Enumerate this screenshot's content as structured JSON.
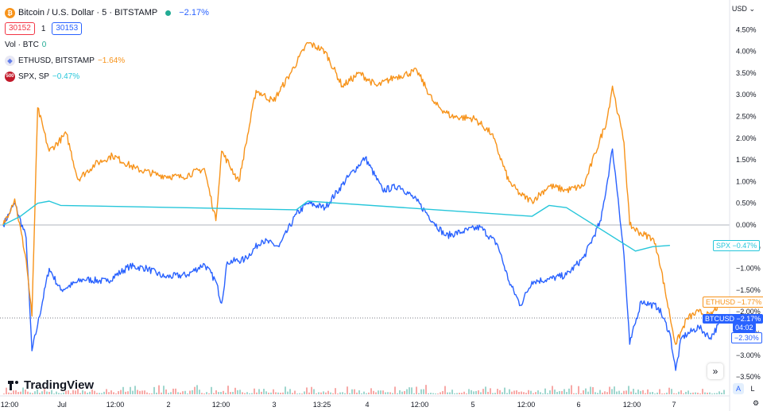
{
  "header": {
    "symbol_title": "Bitcoin / U.S. Dollar · 5 · BITSTAMP",
    "change": "−2.17%",
    "bid": "30152",
    "spread": "1",
    "ask": "30153",
    "volume_label": "Vol · BTC",
    "volume_value": "0"
  },
  "compare": [
    {
      "label": "ETHUSD, BITSTAMP",
      "change": "−1.64%",
      "color": "#f7931a"
    },
    {
      "label": "SPX, SP",
      "change": "−0.47%",
      "color": "#26c6da"
    }
  ],
  "price_axis": {
    "currency": "USD",
    "ticks": [
      "4.50%",
      "4.00%",
      "3.50%",
      "3.00%",
      "2.50%",
      "2.00%",
      "1.50%",
      "1.00%",
      "0.50%",
      "0.00%",
      "−0.50%",
      "−1.00%",
      "−1.50%",
      "−2.00%",
      "−2.50%",
      "−3.00%",
      "−3.50%"
    ]
  },
  "time_axis": {
    "ticks": [
      "12:00",
      "Jul",
      "12:00",
      "2",
      "12:00",
      "3",
      "13:25",
      "4",
      "12:00",
      "5",
      "12:00",
      "6",
      "12:00",
      "7"
    ]
  },
  "tags": {
    "spx": {
      "name": "SPX",
      "value": "−0.47%"
    },
    "eth": {
      "name": "ETHUSD",
      "value": "−1.77%"
    },
    "btc": {
      "name": "BTCUSD",
      "value": "−2.17%",
      "countdown": "04:02"
    },
    "low": {
      "value": "−2.30%"
    }
  },
  "branding": {
    "logo_text": "TradingView"
  },
  "controls": {
    "auto": "A",
    "log": "L",
    "nav": "»"
  },
  "colors": {
    "btc": "#2962ff",
    "eth": "#f7931a",
    "spx": "#26c6da"
  },
  "chart_data": {
    "type": "line",
    "x_unit": "time index (5-min bars, approx.)",
    "y_unit": "percent change",
    "ylim": [
      -3.6,
      4.7
    ],
    "series": [
      {
        "name": "BTCUSD",
        "values": [
          [
            0,
            0
          ],
          [
            2,
            0.5
          ],
          [
            4,
            -0.3
          ],
          [
            5,
            -2.9
          ],
          [
            6,
            -2.3
          ],
          [
            8,
            -1.0
          ],
          [
            10,
            -1.5
          ],
          [
            14,
            -1.25
          ],
          [
            18,
            -1.3
          ],
          [
            22,
            -0.95
          ],
          [
            25,
            -1.0
          ],
          [
            28,
            -1.2
          ],
          [
            32,
            -1.15
          ],
          [
            35,
            -0.9
          ],
          [
            37,
            -1.3
          ],
          [
            38,
            -1.8
          ],
          [
            39,
            -0.85
          ],
          [
            42,
            -0.8
          ],
          [
            45,
            -0.35
          ],
          [
            48,
            -0.5
          ],
          [
            51,
            0.25
          ],
          [
            53,
            0.5
          ],
          [
            56,
            0.4
          ],
          [
            60,
            1.1
          ],
          [
            63,
            1.55
          ],
          [
            66,
            0.8
          ],
          [
            69,
            0.9
          ],
          [
            72,
            0.55
          ],
          [
            75,
            0.05
          ],
          [
            77,
            -0.25
          ],
          [
            80,
            -0.15
          ],
          [
            83,
            -0.05
          ],
          [
            86,
            -0.45
          ],
          [
            88,
            -1.3
          ],
          [
            90,
            -1.85
          ],
          [
            92,
            -1.3
          ],
          [
            95,
            -1.25
          ],
          [
            98,
            -1.15
          ],
          [
            101,
            -0.75
          ],
          [
            104,
            0.1
          ],
          [
            106,
            1.75
          ],
          [
            107,
            0.6
          ],
          [
            108,
            -0.7
          ],
          [
            109,
            -2.75
          ],
          [
            111,
            -1.75
          ],
          [
            114,
            -1.9
          ],
          [
            116,
            -2.5
          ],
          [
            117,
            -3.35
          ],
          [
            118,
            -2.6
          ],
          [
            121,
            -2.35
          ],
          [
            123,
            -2.6
          ],
          [
            125,
            -2.2
          ]
        ]
      },
      {
        "name": "ETHUSD",
        "values": [
          [
            0,
            0
          ],
          [
            2,
            0.6
          ],
          [
            4,
            -0.8
          ],
          [
            5,
            -2.1
          ],
          [
            6,
            2.7
          ],
          [
            8,
            1.7
          ],
          [
            11,
            2.1
          ],
          [
            13,
            1.05
          ],
          [
            16,
            1.4
          ],
          [
            19,
            1.6
          ],
          [
            23,
            1.3
          ],
          [
            27,
            1.15
          ],
          [
            31,
            1.1
          ],
          [
            35,
            1.3
          ],
          [
            37,
            0.1
          ],
          [
            38,
            1.7
          ],
          [
            41,
            1.0
          ],
          [
            44,
            3.1
          ],
          [
            47,
            2.85
          ],
          [
            50,
            3.5
          ],
          [
            53,
            4.2
          ],
          [
            56,
            4.0
          ],
          [
            59,
            3.2
          ],
          [
            62,
            3.5
          ],
          [
            65,
            3.2
          ],
          [
            68,
            3.4
          ],
          [
            72,
            3.55
          ],
          [
            75,
            2.8
          ],
          [
            78,
            2.5
          ],
          [
            82,
            2.45
          ],
          [
            85,
            2.1
          ],
          [
            88,
            1.0
          ],
          [
            90,
            0.7
          ],
          [
            92,
            0.55
          ],
          [
            95,
            0.9
          ],
          [
            98,
            0.8
          ],
          [
            101,
            0.9
          ],
          [
            103,
            1.65
          ],
          [
            105,
            2.4
          ],
          [
            106,
            3.2
          ],
          [
            107,
            2.55
          ],
          [
            108,
            1.9
          ],
          [
            109,
            0.0
          ],
          [
            111,
            -0.2
          ],
          [
            113,
            -0.3
          ],
          [
            114,
            -0.7
          ],
          [
            116,
            -2.1
          ],
          [
            117,
            -2.75
          ],
          [
            119,
            -2.15
          ],
          [
            121,
            -2.0
          ],
          [
            123,
            -2.1
          ],
          [
            125,
            -1.75
          ]
        ]
      },
      {
        "name": "SPX",
        "values": [
          [
            0,
            0
          ],
          [
            3,
            0.2
          ],
          [
            6,
            0.5
          ],
          [
            8,
            0.55
          ],
          [
            10,
            0.45
          ],
          [
            51,
            0.35
          ],
          [
            53,
            0.55
          ],
          [
            92,
            0.2
          ],
          [
            95,
            0.45
          ],
          [
            98,
            0.4
          ],
          [
            110,
            -0.6
          ],
          [
            113,
            -0.5
          ],
          [
            116,
            -0.47
          ]
        ]
      }
    ]
  }
}
